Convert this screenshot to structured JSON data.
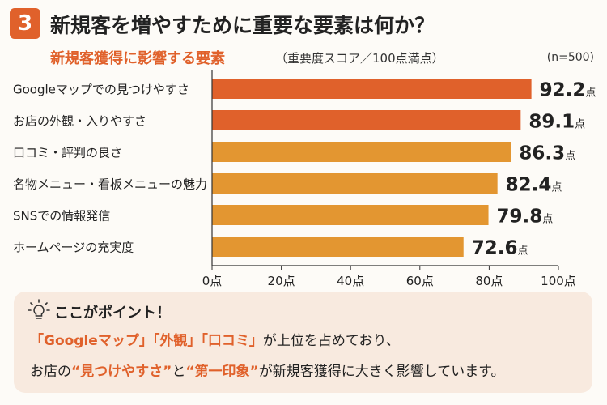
{
  "header": {
    "number": "3",
    "title": "新規客を増やすために重要な要素は何か？",
    "subtitle": "新規客獲得に影響する要素",
    "subtitle_note": "（重要度スコア／100点満点）",
    "sample": "(n=500)"
  },
  "chart_data": {
    "type": "bar",
    "orientation": "horizontal",
    "categories": [
      "Googleマップでの見つけやすさ",
      "お店の外観・入りやすさ",
      "口コミ・評判の良さ",
      "名物メニュー・看板メニューの魅力",
      "SNSでの情報発信",
      "ホームページの充実度"
    ],
    "values": [
      92.2,
      89.1,
      86.3,
      82.4,
      79.8,
      72.6
    ],
    "value_unit": "点",
    "xlim": [
      0,
      100
    ],
    "xticks": [
      "0点",
      "20点",
      "40点",
      "60点",
      "80点",
      "100点"
    ],
    "grid": false,
    "colors": [
      "#e0612b",
      "#e0612b",
      "#e39631",
      "#e39631",
      "#e39631",
      "#e39631"
    ]
  },
  "point": {
    "heading": "ここがポイント！",
    "line1": {
      "q1": "「Googleマップ」「外観」「口コミ」",
      "t1": "が上位を占めており、"
    },
    "line2": {
      "t1": "お店の",
      "q1": "“見つけやすさ”",
      "t2": "と",
      "q2": "“第一印象”",
      "t3": "が新規客獲得に大きく影響しています。"
    }
  }
}
